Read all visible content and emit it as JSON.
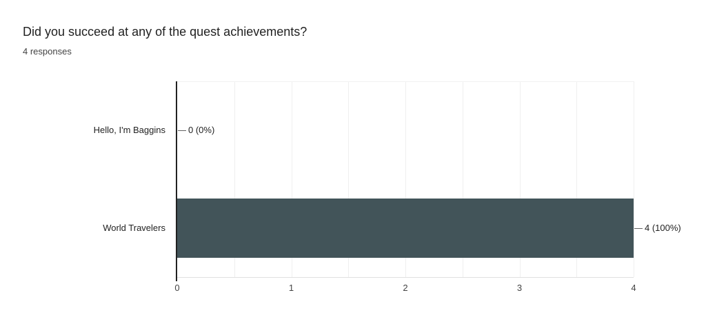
{
  "header": {
    "title": "Did you succeed at any of the quest achievements?",
    "subtitle": "4 responses"
  },
  "chart_data": {
    "type": "bar",
    "orientation": "horizontal",
    "title": "Did you succeed at any of the quest achievements?",
    "subtitle": "4 responses",
    "categories": [
      "Hello, I'm Baggins",
      "World Travelers"
    ],
    "values": [
      0,
      4
    ],
    "value_labels": [
      "0 (0%)",
      "4 (100%)"
    ],
    "xlabel": "",
    "ylabel": "",
    "xlim": [
      0,
      4
    ],
    "x_ticks": [
      0,
      1,
      2,
      3,
      4
    ],
    "gridline_step": 0.5,
    "grid": true,
    "legend_position": "none",
    "colors": {
      "background": "#ffffff",
      "bar": "#425459",
      "axis_line": "#212121",
      "gridline": "#efefef",
      "baseline": "#e0e0e0",
      "title_text": "#212121",
      "subtitle_text": "#424242",
      "category_text": "#212121",
      "value_text": "#212121",
      "tick_text": "#424242",
      "leader_line": "#616161"
    }
  }
}
